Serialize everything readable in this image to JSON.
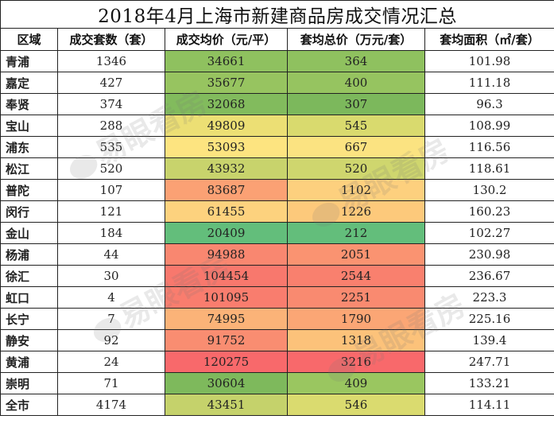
{
  "title": "2018年4月上海市新建商品房成交情况汇总",
  "headers": [
    "区域",
    "成交套数（套）",
    "成交均价（元/平）",
    "套均总价（万元/套）",
    "套均面积（㎡/套）"
  ],
  "rows": [
    {
      "region": "青浦",
      "units": "1346",
      "avg_price": "34661",
      "avg_total": "364",
      "avg_area": "101.98",
      "price_color": "#8fc15f",
      "total_color": "#8fc15f"
    },
    {
      "region": "嘉定",
      "units": "427",
      "avg_price": "35677",
      "avg_total": "400",
      "avg_area": "111.18",
      "price_color": "#97c460",
      "total_color": "#96c460"
    },
    {
      "region": "奉贤",
      "units": "374",
      "avg_price": "32068",
      "avg_total": "307",
      "avg_area": "96.3",
      "price_color": "#82bb5d",
      "total_color": "#7cb85c"
    },
    {
      "region": "宝山",
      "units": "288",
      "avg_price": "49809",
      "avg_total": "545",
      "avg_area": "108.99",
      "price_color": "#ecdf74",
      "total_color": "#d9da6e"
    },
    {
      "region": "浦东",
      "units": "535",
      "avg_price": "53093",
      "avg_total": "667",
      "avg_area": "116.56",
      "price_color": "#fde480",
      "total_color": "#fbe381"
    },
    {
      "region": "松江",
      "units": "520",
      "avg_price": "43932",
      "avg_total": "520",
      "avg_area": "118.61",
      "price_color": "#c8d36c",
      "total_color": "#cfd66e"
    },
    {
      "region": "普陀",
      "units": "107",
      "avg_price": "83687",
      "avg_total": "1102",
      "avg_area": "130.2",
      "price_color": "#fba174",
      "total_color": "#fdd07e"
    },
    {
      "region": "闵行",
      "units": "121",
      "avg_price": "61455",
      "avg_total": "1226",
      "avg_area": "160.23",
      "price_color": "#fdd27e",
      "total_color": "#fdc97b"
    },
    {
      "region": "金山",
      "units": "184",
      "avg_price": "20409",
      "avg_total": "212",
      "avg_area": "102.27",
      "price_color": "#63be7b",
      "total_color": "#63be7b"
    },
    {
      "region": "杨浦",
      "units": "44",
      "avg_price": "94988",
      "avg_total": "2051",
      "avg_area": "230.98",
      "price_color": "#f98770",
      "total_color": "#fa9371"
    },
    {
      "region": "徐汇",
      "units": "30",
      "avg_price": "104454",
      "avg_total": "2544",
      "avg_area": "236.67",
      "price_color": "#f8786d",
      "total_color": "#f9806e"
    },
    {
      "region": "虹口",
      "units": "4",
      "avg_price": "101095",
      "avg_total": "2251",
      "avg_area": "223.3",
      "price_color": "#f97d6e",
      "total_color": "#f98a70"
    },
    {
      "region": "长宁",
      "units": "7",
      "avg_price": "74995",
      "avg_total": "1790",
      "avg_area": "225.16",
      "price_color": "#fbb378",
      "total_color": "#fba675"
    },
    {
      "region": "静安",
      "units": "92",
      "avg_price": "91752",
      "avg_total": "1318",
      "avg_area": "139.4",
      "price_color": "#f98d71",
      "total_color": "#fcc27a"
    },
    {
      "region": "黄浦",
      "units": "24",
      "avg_price": "120275",
      "avg_total": "3216",
      "avg_area": "247.71",
      "price_color": "#f8696b",
      "total_color": "#f8696b"
    },
    {
      "region": "崇明",
      "units": "71",
      "avg_price": "30604",
      "avg_total": "409",
      "avg_area": "133.21",
      "price_color": "#7eb95c",
      "total_color": "#9ac660"
    },
    {
      "region": "全市",
      "units": "4174",
      "avg_price": "43451",
      "avg_total": "546",
      "avg_area": "114.11",
      "price_color": "#c5d26b",
      "total_color": "#dadb6f"
    }
  ],
  "watermark": "易眼看房"
}
